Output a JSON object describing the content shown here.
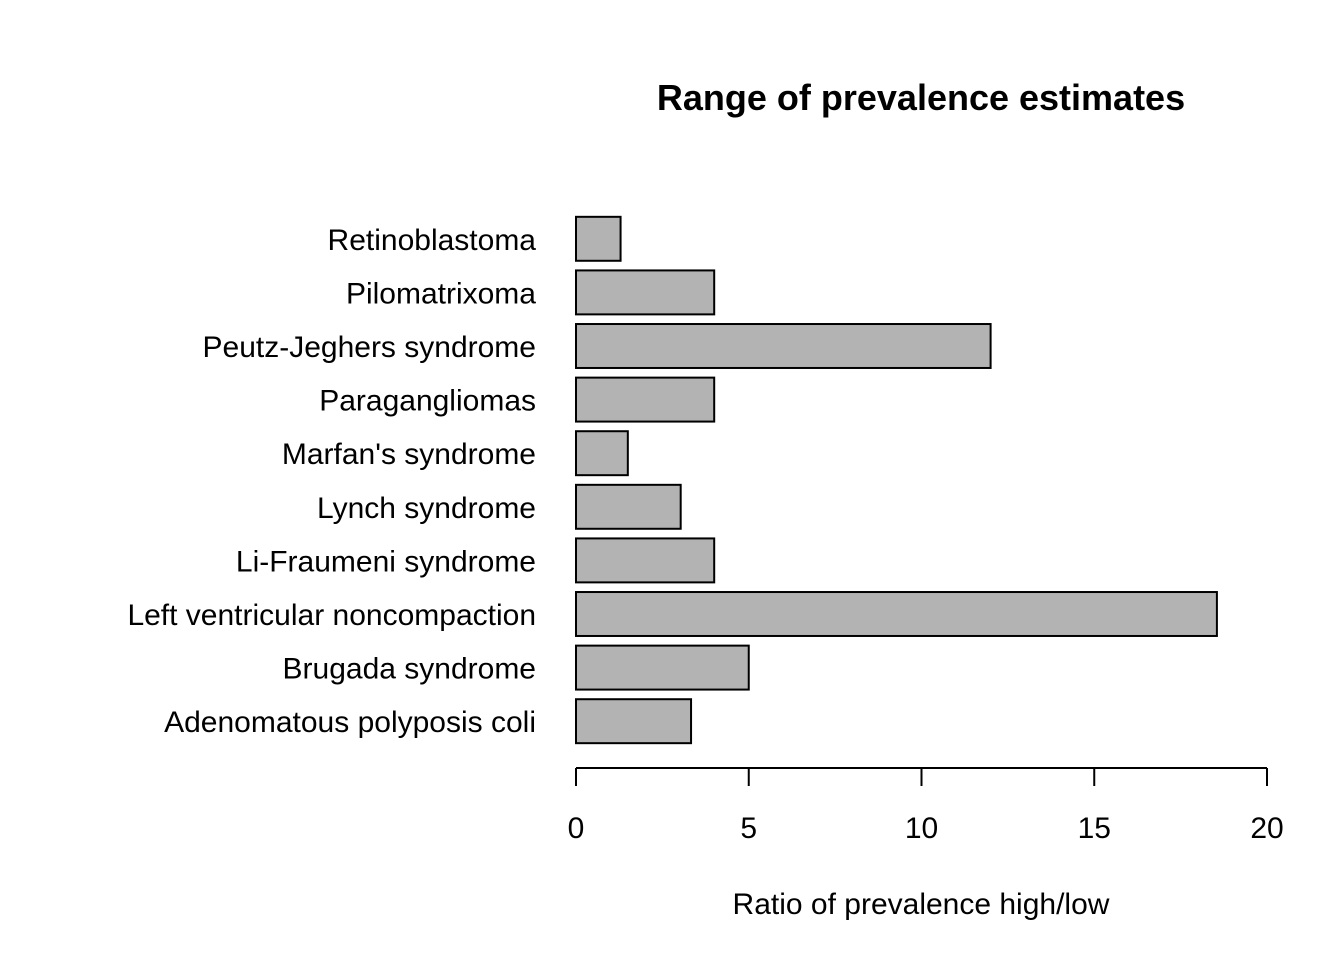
{
  "chart_data": {
    "type": "bar",
    "orientation": "horizontal",
    "title": "Range of prevalence estimates",
    "xlabel": "Ratio of prevalence high/low",
    "ylabel": "",
    "xlim": [
      0,
      20
    ],
    "xticks": [
      "0",
      "5",
      "10",
      "15",
      "20"
    ],
    "categories": [
      "Adenomatous polyposis coli",
      "Brugada syndrome",
      "Left ventricular noncompaction",
      "Li-Fraumeni syndrome",
      "Lynch syndrome",
      "Marfan's syndrome",
      "Paragangliomas",
      "Peutz-Jeghers syndrome",
      "Pilomatrixoma",
      "Retinoblastoma"
    ],
    "values": [
      3.33,
      5.0,
      18.55,
      4.0,
      3.03,
      1.5,
      4.0,
      12.0,
      4.0,
      1.29
    ],
    "bar_color": "#b3b3b3",
    "bar_border": "#000000",
    "grid": false,
    "legend": "none"
  }
}
